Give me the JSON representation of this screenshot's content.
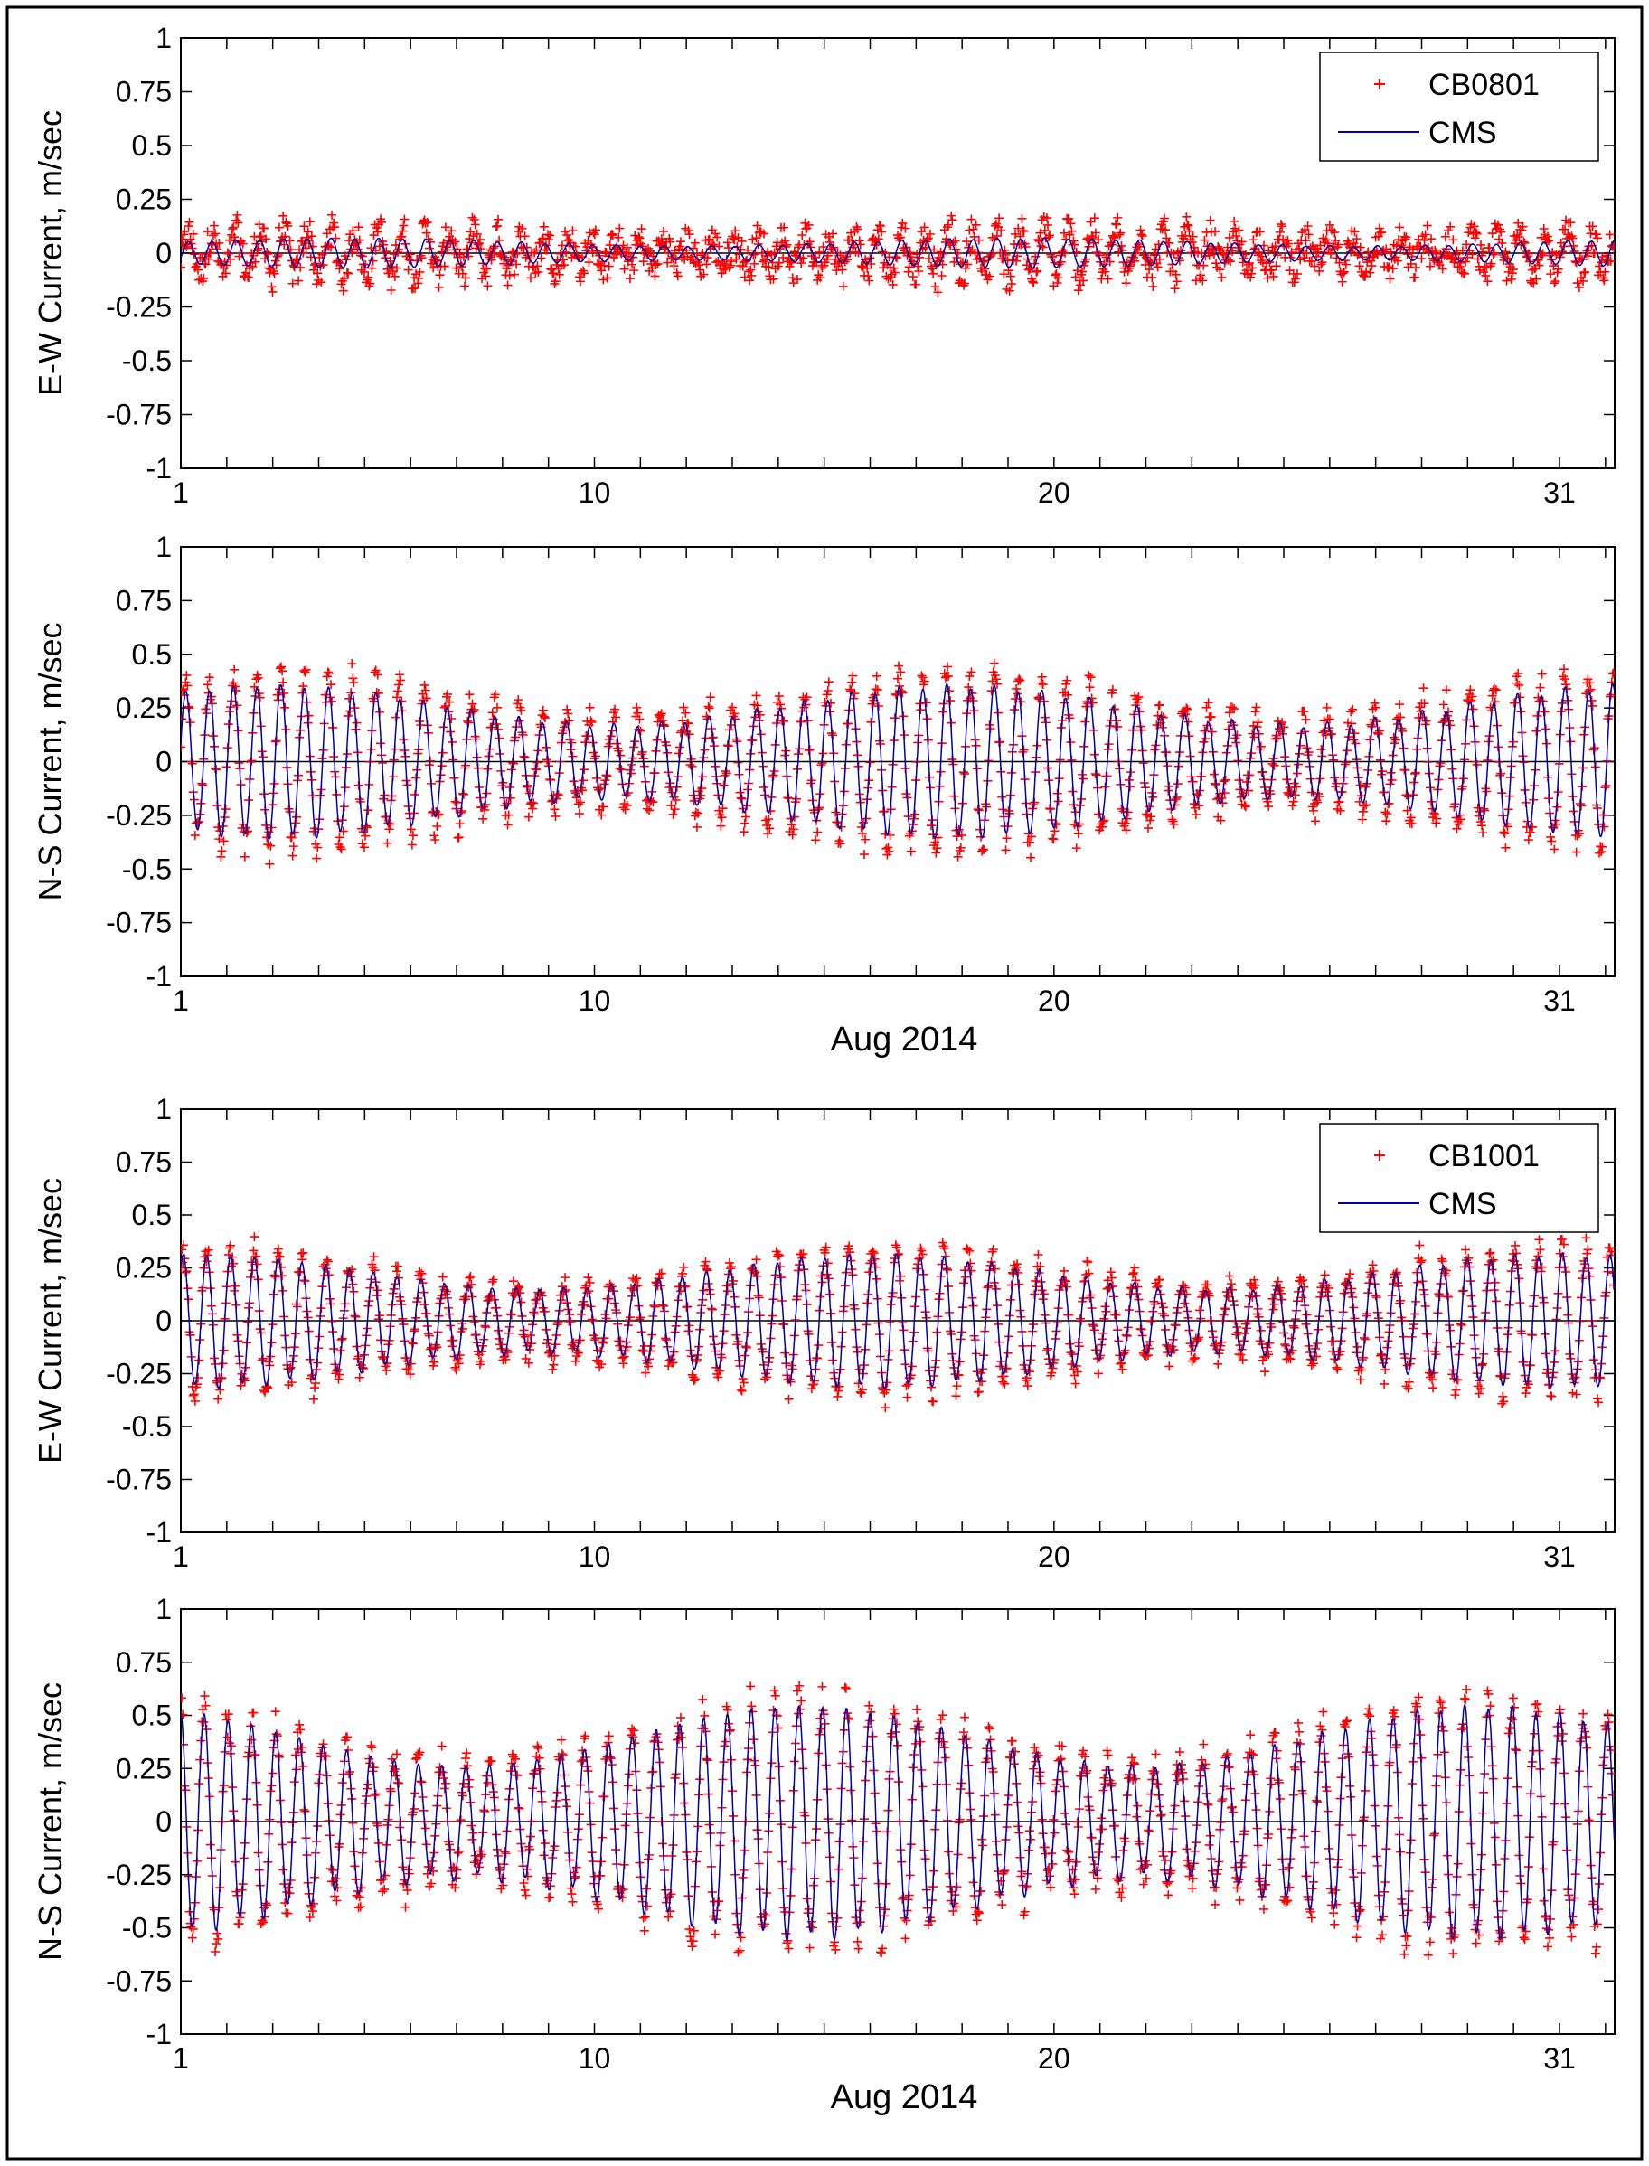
{
  "figure": {
    "xlabel": "Aug 2014"
  },
  "chart_data": [
    {
      "type": "line",
      "title": "",
      "ylabel": "E-W Current, m/sec",
      "xlabel": "",
      "ylim": [
        -1,
        1
      ],
      "xlim": [
        1,
        32.2
      ],
      "yticks": [
        -1,
        -0.75,
        -0.5,
        -0.25,
        0,
        0.25,
        0.5,
        0.75,
        1
      ],
      "ytick_labels": [
        "-1",
        "-0.75",
        "-0.5",
        "-0.25",
        "0",
        "0.25",
        "0.5",
        "0.75",
        "1"
      ],
      "xticks": [
        1,
        10,
        20,
        31
      ],
      "xtick_labels": [
        "1",
        "10",
        "20",
        "31"
      ],
      "legend": {
        "position": "top-right",
        "entries": [
          "CB0801",
          "CMS"
        ]
      },
      "series": [
        {
          "name": "CB0801",
          "marker": "+",
          "color": "#ff0000",
          "amp": 0.08,
          "noise": 0.08,
          "tidal_period": 0.5175
        },
        {
          "name": "CMS",
          "marker": "line",
          "color": "#0000aa",
          "amp": 0.05,
          "tidal_period": 0.5175
        }
      ]
    },
    {
      "type": "line",
      "title": "",
      "ylabel": "N-S Current, m/sec",
      "xlabel": "Aug 2014",
      "ylim": [
        -1,
        1
      ],
      "xlim": [
        1,
        32.2
      ],
      "yticks": [
        -1,
        -0.75,
        -0.5,
        -0.25,
        0,
        0.25,
        0.5,
        0.75,
        1
      ],
      "ytick_labels": [
        "-1",
        "-0.75",
        "-0.5",
        "-0.25",
        "0",
        "0.25",
        "0.5",
        "0.75",
        "1"
      ],
      "xticks": [
        1,
        10,
        20,
        31
      ],
      "xtick_labels": [
        "1",
        "10",
        "20",
        "31"
      ],
      "legend": null,
      "series": [
        {
          "name": "CB0801",
          "marker": "+",
          "color": "#ff0000",
          "amp": 0.3,
          "noise": 0.06,
          "tidal_period": 0.5175
        },
        {
          "name": "CMS",
          "marker": "line",
          "color": "#0000aa",
          "amp": 0.26,
          "tidal_period": 0.5175
        }
      ]
    },
    {
      "type": "line",
      "title": "",
      "ylabel": "E-W Current, m/sec",
      "xlabel": "",
      "ylim": [
        -1,
        1
      ],
      "xlim": [
        1,
        32.2
      ],
      "yticks": [
        -1,
        -0.75,
        -0.5,
        -0.25,
        0,
        0.25,
        0.5,
        0.75,
        1
      ],
      "ytick_labels": [
        "-1",
        "-0.75",
        "-0.5",
        "-0.25",
        "0",
        "0.25",
        "0.5",
        "0.75",
        "1"
      ],
      "xticks": [
        1,
        10,
        20,
        31
      ],
      "xtick_labels": [
        "1",
        "10",
        "20",
        "31"
      ],
      "legend": {
        "position": "top-right",
        "entries": [
          "CB1001",
          "CMS"
        ]
      },
      "series": [
        {
          "name": "CB1001",
          "marker": "+",
          "color": "#ff0000",
          "amp": 0.25,
          "noise": 0.05,
          "tidal_period": 0.5175
        },
        {
          "name": "CMS",
          "marker": "line",
          "color": "#0000aa",
          "amp": 0.23,
          "tidal_period": 0.5175
        }
      ]
    },
    {
      "type": "line",
      "title": "",
      "ylabel": "N-S Current, m/sec",
      "xlabel": "Aug 2014",
      "ylim": [
        -1,
        1
      ],
      "xlim": [
        1,
        32.2
      ],
      "yticks": [
        -1,
        -0.75,
        -0.5,
        -0.25,
        0,
        0.25,
        0.5,
        0.75,
        1
      ],
      "ytick_labels": [
        "-1",
        "-0.75",
        "-0.5",
        "-0.25",
        "0",
        "0.25",
        "0.5",
        "0.75",
        "1"
      ],
      "xticks": [
        1,
        10,
        20,
        31
      ],
      "xtick_labels": [
        "1",
        "10",
        "20",
        "31"
      ],
      "legend": null,
      "series": [
        {
          "name": "CB1001",
          "marker": "+",
          "color": "#ff0000",
          "amp": 0.42,
          "noise": 0.07,
          "tidal_period": 0.5175
        },
        {
          "name": "CMS",
          "marker": "line",
          "color": "#0000aa",
          "amp": 0.4,
          "tidal_period": 0.5175
        }
      ]
    }
  ]
}
